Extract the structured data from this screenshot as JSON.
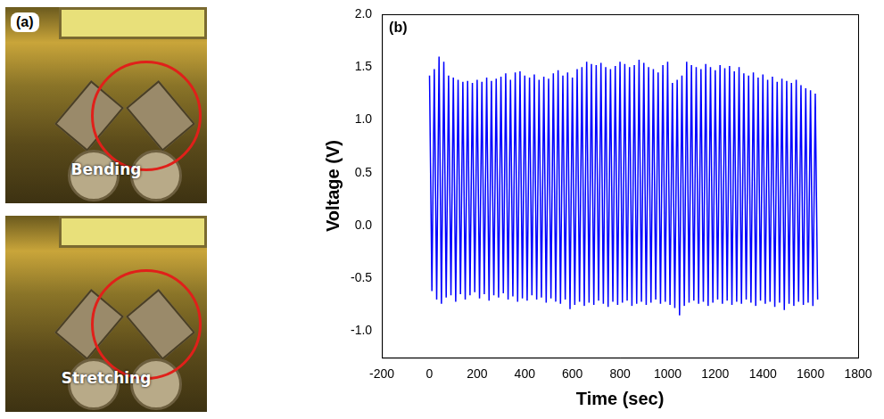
{
  "panel_a": {
    "label": "(a)",
    "photos": [
      "Bending",
      "Stretching"
    ]
  },
  "chart_data": {
    "type": "line",
    "annotations": [
      "(b)"
    ],
    "x_label": "Time (sec)",
    "y_label": "Voltage (V)",
    "color": "#0000ff",
    "grid": false,
    "xlim": [
      -200,
      1800
    ],
    "xticks": [
      -200,
      0,
      200,
      400,
      600,
      800,
      1000,
      1200,
      1400,
      1600,
      1800
    ],
    "ylim": [
      -1.25,
      2.0
    ],
    "yticks": [
      {
        "value": -1.0,
        "label": "-1.0"
      },
      -0.5,
      {
        "value": 0,
        "label": "0.0"
      },
      0.5,
      {
        "value": 1.0,
        "label": "1.0"
      },
      1.5,
      {
        "value": 2.0,
        "label": "2.0"
      }
    ],
    "x": [
      0,
      10,
      20,
      30,
      40,
      50,
      60,
      70,
      80,
      90,
      100,
      110,
      120,
      130,
      140,
      150,
      160,
      170,
      180,
      190,
      200,
      210,
      220,
      230,
      240,
      250,
      260,
      270,
      280,
      290,
      300,
      310,
      320,
      330,
      340,
      350,
      360,
      370,
      380,
      390,
      400,
      410,
      420,
      430,
      440,
      450,
      460,
      470,
      480,
      490,
      500,
      510,
      520,
      530,
      540,
      550,
      560,
      570,
      580,
      590,
      600,
      610,
      620,
      630,
      640,
      650,
      660,
      670,
      680,
      690,
      700,
      710,
      720,
      730,
      740,
      750,
      760,
      770,
      780,
      790,
      800,
      810,
      820,
      830,
      840,
      850,
      860,
      870,
      880,
      890,
      900,
      910,
      920,
      930,
      940,
      950,
      960,
      970,
      980,
      990,
      1000,
      1010,
      1020,
      1030,
      1040,
      1050,
      1060,
      1070,
      1080,
      1090,
      1100,
      1110,
      1120,
      1130,
      1140,
      1150,
      1160,
      1170,
      1180,
      1190,
      1200,
      1210,
      1220,
      1230,
      1240,
      1250,
      1260,
      1270,
      1280,
      1290,
      1300,
      1310,
      1320,
      1330,
      1340,
      1350,
      1360,
      1370,
      1380,
      1390,
      1400,
      1410,
      1420,
      1430,
      1440,
      1450,
      1460,
      1470,
      1480,
      1490,
      1500,
      1510,
      1520,
      1530,
      1540,
      1550,
      1560,
      1570,
      1580,
      1590,
      1600,
      1610,
      1620,
      1630
    ],
    "values": [
      1.42,
      -0.62,
      1.48,
      -0.7,
      1.6,
      -0.74,
      1.55,
      -0.68,
      1.42,
      -0.66,
      1.4,
      -0.72,
      1.38,
      -0.65,
      1.36,
      -0.7,
      1.37,
      -0.66,
      1.35,
      -0.63,
      1.38,
      -0.69,
      1.36,
      -0.65,
      1.4,
      -0.71,
      1.37,
      -0.66,
      1.39,
      -0.68,
      1.41,
      -0.64,
      1.44,
      -0.7,
      1.38,
      -0.67,
      1.45,
      -0.72,
      1.46,
      -0.69,
      1.42,
      -0.71,
      1.4,
      -0.66,
      1.43,
      -0.7,
      1.38,
      -0.68,
      1.41,
      -0.73,
      1.39,
      -0.69,
      1.44,
      -0.72,
      1.47,
      -0.74,
      1.42,
      -0.7,
      1.45,
      -0.79,
      1.4,
      -0.75,
      1.48,
      -0.72,
      1.5,
      -0.76,
      1.55,
      -0.73,
      1.53,
      -0.75,
      1.52,
      -0.71,
      1.54,
      -0.74,
      1.5,
      -0.77,
      1.48,
      -0.72,
      1.51,
      -0.75,
      1.55,
      -0.73,
      1.53,
      -0.71,
      1.5,
      -0.76,
      1.52,
      -0.74,
      1.57,
      -0.72,
      1.54,
      -0.75,
      1.5,
      -0.73,
      1.48,
      -0.7,
      1.45,
      -0.74,
      1.52,
      -0.72,
      1.55,
      -0.75,
      1.35,
      -0.78,
      1.38,
      -0.85,
      1.42,
      -0.76,
      1.55,
      -0.73,
      1.52,
      -0.71,
      1.5,
      -0.74,
      1.48,
      -0.72,
      1.53,
      -0.76,
      1.5,
      -0.73,
      1.47,
      -0.7,
      1.52,
      -0.74,
      1.49,
      -0.71,
      1.51,
      -0.75,
      1.46,
      -0.72,
      1.5,
      -0.74,
      1.44,
      -0.7,
      1.42,
      -0.73,
      1.45,
      -0.76,
      1.4,
      -0.71,
      1.43,
      -0.74,
      1.38,
      -0.72,
      1.41,
      -0.77,
      1.36,
      -0.73,
      1.39,
      -0.8,
      1.37,
      -0.74,
      1.35,
      -0.76,
      1.38,
      -0.72,
      1.33,
      -0.75,
      1.3,
      -0.73,
      1.28,
      -0.76,
      1.25,
      -0.7
    ]
  }
}
